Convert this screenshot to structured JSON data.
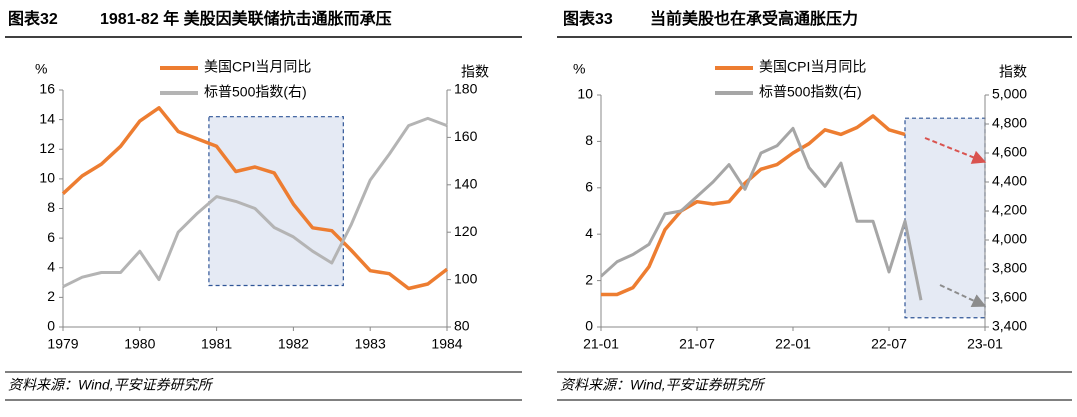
{
  "chart_data": [
    {
      "type": "line",
      "figure_label": "图表32",
      "title": "1981-82 年 美股因美联储抗击通胀而承压",
      "y_unit": "%",
      "y2_unit": "指数",
      "source": "资料来源：Wind,平安证券研究所",
      "x": [
        1979,
        1979.25,
        1979.5,
        1979.75,
        1980,
        1980.25,
        1980.5,
        1980.75,
        1981,
        1981.25,
        1981.5,
        1981.75,
        1982,
        1982.25,
        1982.5,
        1982.75,
        1983,
        1983.25,
        1983.5,
        1983.75,
        1984
      ],
      "xlim": [
        1979,
        1984
      ],
      "xticks": [
        1979,
        1980,
        1981,
        1982,
        1983,
        1984
      ],
      "ylim": [
        0,
        16
      ],
      "yticks": [
        0,
        2,
        4,
        6,
        8,
        10,
        12,
        14,
        16
      ],
      "y2lim": [
        80,
        180
      ],
      "y2ticks": [
        80,
        100,
        120,
        140,
        160,
        180
      ],
      "shaded_region": {
        "x": [
          1980.9,
          1982.65
        ],
        "y": [
          2.8,
          14.2
        ]
      },
      "series": [
        {
          "name": "美国CPI当月同比",
          "color": "#ed7d31",
          "values": [
            9.0,
            10.2,
            11.0,
            12.2,
            13.9,
            14.8,
            13.2,
            12.7,
            12.2,
            10.5,
            10.8,
            10.4,
            8.3,
            6.7,
            6.5,
            5.2,
            3.8,
            3.6,
            2.6,
            2.9,
            3.9
          ]
        },
        {
          "name": "标普500指数(右)",
          "color": "#b4b4b4",
          "axis": "y2",
          "values": [
            97,
            101,
            103,
            103,
            112,
            100,
            120,
            128,
            135,
            133,
            130,
            122,
            118,
            112,
            107,
            123,
            142,
            153,
            165,
            168,
            165
          ]
        }
      ]
    },
    {
      "type": "line",
      "figure_label": "图表33",
      "title": "当前美股也在承受高通胀压力",
      "y_unit": "%",
      "y2_unit": "指数",
      "source": "资料来源：Wind,平安证券研究所",
      "x": [
        "21-01",
        "21-02",
        "21-03",
        "21-04",
        "21-05",
        "21-06",
        "21-07",
        "21-08",
        "21-09",
        "21-10",
        "21-11",
        "21-12",
        "22-01",
        "22-02",
        "22-03",
        "22-04",
        "22-05",
        "22-06",
        "22-07",
        "22-08",
        "22-09"
      ],
      "xlim": [
        "21-01",
        "23-01"
      ],
      "xticks": [
        "21-01",
        "21-07",
        "22-01",
        "22-07",
        "23-01"
      ],
      "ylim": [
        0,
        10
      ],
      "yticks": [
        0,
        2,
        4,
        6,
        8,
        10
      ],
      "y2lim": [
        3400,
        5000
      ],
      "y2ticks": [
        {
          "value": 3400,
          "label": "3,400"
        },
        {
          "value": 3600,
          "label": "3,600"
        },
        {
          "value": 3800,
          "label": "3,800"
        },
        {
          "value": 4000,
          "label": "4,000"
        },
        {
          "value": 4200,
          "label": "4,200"
        },
        {
          "value": 4400,
          "label": "4,400"
        },
        {
          "value": 4600,
          "label": "4,600"
        },
        {
          "value": 4800,
          "label": "4,800"
        },
        {
          "value": 5000,
          "label": "5,000"
        }
      ],
      "shaded_region": {
        "x": [
          "22-08",
          "23-01"
        ],
        "y": [
          0.4,
          9.0
        ]
      },
      "series": [
        {
          "name": "美国CPI当月同比",
          "color": "#ed7d31",
          "values": [
            1.4,
            1.4,
            1.7,
            2.6,
            4.2,
            5.0,
            5.4,
            5.3,
            5.4,
            6.2,
            6.8,
            7.0,
            7.5,
            7.9,
            8.5,
            8.3,
            8.6,
            9.1,
            8.5,
            8.3,
            null
          ]
        },
        {
          "name": "标普500指数(右)",
          "color": "#a6a6a6",
          "axis": "y2",
          "values": [
            3750,
            3850,
            3900,
            3970,
            4180,
            4200,
            4300,
            4400,
            4520,
            4350,
            4600,
            4650,
            4770,
            4500,
            4370,
            4530,
            4130,
            4130,
            3780,
            4130,
            3585
          ]
        }
      ]
    }
  ]
}
